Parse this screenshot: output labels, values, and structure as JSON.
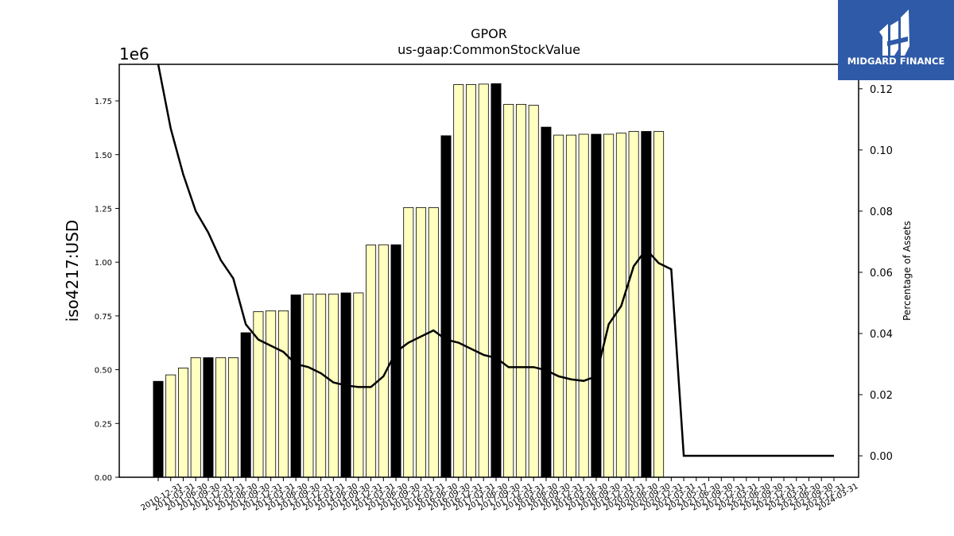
{
  "chart_data": {
    "type": "bar",
    "title": "GPOR",
    "subtitle": "us-gaap:CommonStockValue",
    "ylabel": "iso4217:USD",
    "y_offset_text": "1e6",
    "y2label": "Percentage of Assets",
    "ylim": [
      0,
      1.92
    ],
    "y2lim": [
      -0.007,
      0.128
    ],
    "y_ticks": [
      "0.00",
      "0.25",
      "0.50",
      "0.75",
      "1.00",
      "1.25",
      "1.50",
      "1.75"
    ],
    "y2_ticks": [
      "0.00",
      "0.02",
      "0.04",
      "0.06",
      "0.08",
      "0.10",
      "0.12"
    ],
    "grid": false,
    "colors": {
      "bar_q": "#ffffc0",
      "bar_y": "#000000",
      "line": "#000000",
      "logo_bg": "#2f5aa8"
    },
    "categories": [
      "2010-12-31",
      "2011-03-31",
      "2011-06-30",
      "2011-09-30",
      "2011-12-31",
      "2012-03-31",
      "2012-06-30",
      "2012-09-30",
      "2012-12-31",
      "2013-03-31",
      "2013-06-30",
      "2013-09-30",
      "2013-12-31",
      "2014-03-31",
      "2014-06-30",
      "2014-09-30",
      "2014-12-31",
      "2015-03-31",
      "2015-06-30",
      "2015-09-30",
      "2015-12-31",
      "2016-03-31",
      "2016-06-30",
      "2016-09-30",
      "2016-12-31",
      "2017-03-31",
      "2017-06-30",
      "2017-09-30",
      "2017-12-31",
      "2018-03-31",
      "2018-06-30",
      "2018-09-30",
      "2018-12-31",
      "2019-03-31",
      "2019-06-30",
      "2019-09-30",
      "2019-12-31",
      "2020-03-31",
      "2020-06-30",
      "2020-09-30",
      "2020-12-31",
      "2021-03-31",
      "2021-05-17",
      "2021-06-30",
      "2021-09-30",
      "2021-12-31",
      "2022-03-31",
      "2022-06-30",
      "2022-09-30",
      "2022-12-31",
      "2023-03-31",
      "2023-06-30",
      "2023-09-30",
      "2023-12-31",
      "2024-03-31"
    ],
    "series": [
      {
        "kind": "bar",
        "values": [
          0.446,
          0.476,
          0.508,
          0.556,
          0.556,
          0.556,
          0.556,
          0.672,
          0.77,
          0.774,
          0.774,
          0.848,
          0.852,
          0.852,
          0.852,
          0.857,
          0.857,
          1.08,
          1.081,
          1.081,
          1.254,
          1.254,
          1.254,
          1.588,
          1.826,
          1.826,
          1.828,
          1.83,
          1.734,
          1.734,
          1.73,
          1.628,
          1.591,
          1.591,
          1.595,
          1.595,
          1.595,
          1.6,
          1.608,
          1.608,
          1.608,
          null,
          null,
          null,
          null,
          null,
          null,
          null,
          null,
          null,
          null,
          null,
          null,
          null,
          null
        ],
        "annual": [
          true,
          false,
          false,
          false,
          true,
          false,
          false,
          true,
          false,
          false,
          false,
          true,
          false,
          false,
          false,
          true,
          false,
          false,
          false,
          true,
          false,
          false,
          false,
          true,
          false,
          false,
          false,
          true,
          false,
          false,
          false,
          true,
          false,
          false,
          false,
          true,
          false,
          false,
          false,
          true,
          false,
          false,
          false,
          false,
          false,
          false,
          false,
          false,
          false,
          false,
          false,
          false,
          false,
          false,
          false
        ]
      },
      {
        "kind": "line",
        "axis": "y2",
        "values": [
          0.128,
          0.107,
          0.092,
          0.08,
          0.073,
          0.064,
          0.058,
          0.043,
          0.038,
          0.036,
          0.034,
          0.03,
          0.029,
          0.027,
          0.024,
          0.023,
          0.0225,
          0.0225,
          0.026,
          0.034,
          0.037,
          0.039,
          0.041,
          0.038,
          0.037,
          0.035,
          0.033,
          0.032,
          0.029,
          0.029,
          0.029,
          0.028,
          0.026,
          0.025,
          0.0245,
          0.026,
          0.043,
          0.049,
          0.062,
          0.0675,
          0.063,
          0.061,
          0.0,
          0.0,
          0.0,
          0.0,
          0.0,
          0.0,
          0.0,
          0.0,
          0.0,
          0.0,
          0.0,
          0.0,
          0.0
        ]
      }
    ]
  },
  "logo": {
    "text": "MIDGARD FINANCE"
  }
}
